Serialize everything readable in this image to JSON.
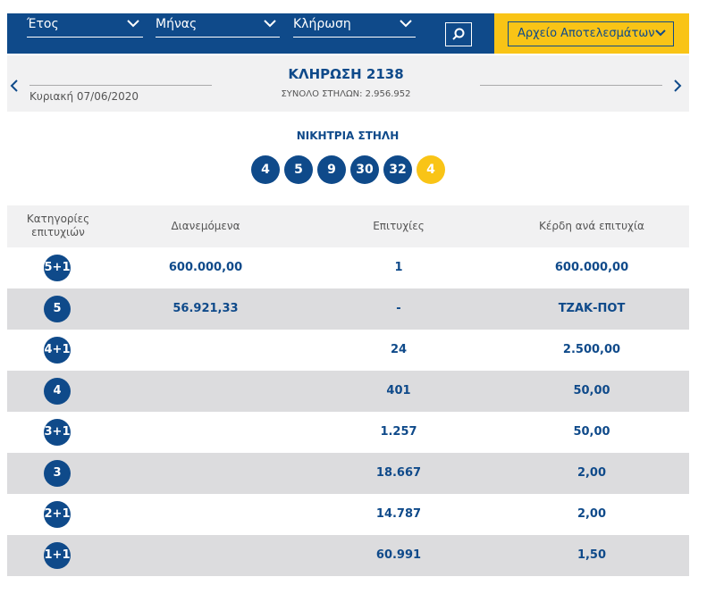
{
  "filters": {
    "year": "Έτος",
    "month": "Μήνας",
    "draw": "Κλήρωση",
    "archive": "Αρχείο Αποτελεσμάτων"
  },
  "draw": {
    "title": "ΚΛΗΡΩΣΗ 2138",
    "date": "Κυριακή 07/06/2020",
    "total_columns": "ΣΥΝΟΛΟ ΣΤΗΛΩΝ: 2.956.952"
  },
  "winning": {
    "label": "ΝΙΚΗΤΡΙΑ ΣΤΗΛΗ",
    "numbers": [
      "4",
      "5",
      "9",
      "30",
      "32"
    ],
    "bonus": "4"
  },
  "table": {
    "headers": [
      "Κατηγορίες επιτυχιών",
      "Διανεμόμενα",
      "Επιτυχίες",
      "Κέρδη ανά επιτυχία"
    ],
    "rows": [
      {
        "category": "5+1",
        "distributed": "600.000,00",
        "winners": "1",
        "prize": "600.000,00"
      },
      {
        "category": "5",
        "distributed": "56.921,33",
        "winners": "-",
        "prize": "ΤΖΑΚ-ΠΟΤ"
      },
      {
        "category": "4+1",
        "winners": "24",
        "prize": "2.500,00"
      },
      {
        "category": "4",
        "winners": "401",
        "prize": "50,00"
      },
      {
        "category": "3+1",
        "winners": "1.257",
        "prize": "50,00"
      },
      {
        "category": "3",
        "winners": "18.667",
        "prize": "2,00"
      },
      {
        "category": "2+1",
        "winners": "14.787",
        "prize": "2,00"
      },
      {
        "category": "1+1",
        "winners": "60.991",
        "prize": "1,50"
      }
    ]
  }
}
